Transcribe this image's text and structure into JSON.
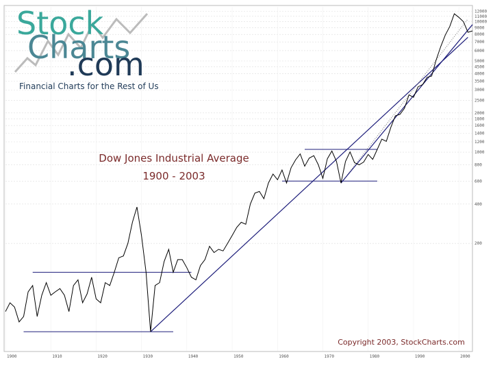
{
  "logo": {
    "line1": "Stock",
    "line2": "Charts",
    "line3": ".com",
    "tagline": "Financial Charts for the Rest of Us"
  },
  "copyright": "Copyright 2003, StockCharts.com",
  "chart_data": {
    "type": "line",
    "title": "Dow Jones Industrial Average",
    "subtitle": "1900 - 2003",
    "scale": "log",
    "xlim": [
      1900,
      2003
    ],
    "ylim": [
      30,
      13000
    ],
    "x_ticks": [
      "1900",
      "1910",
      "1920",
      "1930",
      "1940",
      "1950",
      "1960",
      "1970",
      "1980",
      "1990",
      "2000"
    ],
    "y_ticks": [
      12000,
      11000,
      10000,
      9000,
      8000,
      7000,
      6000,
      5000,
      4500,
      4000,
      3500,
      3000,
      2500,
      2000,
      1800,
      1600,
      1400,
      1200,
      1000,
      800,
      600,
      400,
      200
    ],
    "y_tick_labels": [
      "12000",
      "11000",
      "10000",
      "9000",
      "8000",
      "7000",
      "6000",
      "5000",
      "4500",
      "4000",
      "3500",
      "3000",
      "2500",
      "2000",
      "1800",
      "1600",
      "1400",
      "1200",
      "1000",
      "800",
      "600",
      "400",
      "200"
    ],
    "series": [
      {
        "color": "#000000",
        "points": [
          [
            1900,
            60
          ],
          [
            1901,
            70
          ],
          [
            1902,
            65
          ],
          [
            1903,
            50
          ],
          [
            1904,
            55
          ],
          [
            1905,
            85
          ],
          [
            1906,
            95
          ],
          [
            1907,
            55
          ],
          [
            1908,
            80
          ],
          [
            1909,
            100
          ],
          [
            1910,
            80
          ],
          [
            1911,
            85
          ],
          [
            1912,
            90
          ],
          [
            1913,
            80
          ],
          [
            1914,
            60
          ],
          [
            1915,
            95
          ],
          [
            1916,
            105
          ],
          [
            1917,
            70
          ],
          [
            1918,
            82
          ],
          [
            1919,
            110
          ],
          [
            1920,
            75
          ],
          [
            1921,
            70
          ],
          [
            1922,
            100
          ],
          [
            1923,
            95
          ],
          [
            1924,
            120
          ],
          [
            1925,
            155
          ],
          [
            1926,
            160
          ],
          [
            1927,
            200
          ],
          [
            1928,
            290
          ],
          [
            1929,
            380
          ],
          [
            1930,
            230
          ],
          [
            1931,
            120
          ],
          [
            1932,
            42
          ],
          [
            1933,
            95
          ],
          [
            1934,
            100
          ],
          [
            1935,
            145
          ],
          [
            1936,
            180
          ],
          [
            1937,
            120
          ],
          [
            1938,
            150
          ],
          [
            1939,
            150
          ],
          [
            1940,
            130
          ],
          [
            1941,
            110
          ],
          [
            1942,
            105
          ],
          [
            1943,
            135
          ],
          [
            1944,
            150
          ],
          [
            1945,
            190
          ],
          [
            1946,
            170
          ],
          [
            1947,
            180
          ],
          [
            1948,
            175
          ],
          [
            1949,
            200
          ],
          [
            1950,
            230
          ],
          [
            1951,
            265
          ],
          [
            1952,
            290
          ],
          [
            1953,
            280
          ],
          [
            1954,
            400
          ],
          [
            1955,
            485
          ],
          [
            1956,
            500
          ],
          [
            1957,
            440
          ],
          [
            1958,
            580
          ],
          [
            1959,
            680
          ],
          [
            1960,
            615
          ],
          [
            1961,
            730
          ],
          [
            1962,
            580
          ],
          [
            1963,
            760
          ],
          [
            1964,
            875
          ],
          [
            1965,
            970
          ],
          [
            1966,
            780
          ],
          [
            1967,
            900
          ],
          [
            1968,
            940
          ],
          [
            1969,
            800
          ],
          [
            1970,
            630
          ],
          [
            1971,
            890
          ],
          [
            1972,
            1020
          ],
          [
            1973,
            850
          ],
          [
            1974,
            580
          ],
          [
            1975,
            850
          ],
          [
            1976,
            1005
          ],
          [
            1977,
            830
          ],
          [
            1978,
            800
          ],
          [
            1979,
            840
          ],
          [
            1980,
            960
          ],
          [
            1981,
            880
          ],
          [
            1982,
            1050
          ],
          [
            1983,
            1260
          ],
          [
            1984,
            1210
          ],
          [
            1985,
            1550
          ],
          [
            1986,
            1900
          ],
          [
            1987,
            1950
          ],
          [
            1988,
            2170
          ],
          [
            1989,
            2750
          ],
          [
            1990,
            2630
          ],
          [
            1991,
            3170
          ],
          [
            1992,
            3300
          ],
          [
            1993,
            3750
          ],
          [
            1994,
            3830
          ],
          [
            1995,
            5100
          ],
          [
            1996,
            6450
          ],
          [
            1997,
            7900
          ],
          [
            1998,
            9200
          ],
          [
            1999,
            11500
          ],
          [
            2000,
            10800
          ],
          [
            2001,
            10000
          ],
          [
            2002,
            8300
          ],
          [
            2003,
            8500
          ]
        ]
      }
    ],
    "trendlines": [
      {
        "x": [
          1932,
          2002
        ],
        "y": [
          42,
          7600
        ],
        "style": "solid",
        "color": "#1c1c7a"
      },
      {
        "x": [
          1974,
          2002
        ],
        "y": [
          580,
          10500
        ],
        "style": "dotted",
        "color": "#888888"
      },
      {
        "x": [
          1974,
          2003
        ],
        "y": [
          580,
          9500
        ],
        "style": "solid",
        "color": "#1c1c7a"
      }
    ],
    "channels": [
      {
        "y": 120,
        "x": [
          1906,
          1941
        ],
        "color": "#1c1c7a"
      },
      {
        "y": 42,
        "x": [
          1904,
          1937
        ],
        "color": "#1c1c7a"
      },
      {
        "y": 1050,
        "x": [
          1966,
          1982
        ],
        "color": "#1c1c7a"
      },
      {
        "y": 600,
        "x": [
          1961,
          1982
        ],
        "color": "#1c1c7a"
      }
    ],
    "grid": true,
    "legend": "none"
  }
}
